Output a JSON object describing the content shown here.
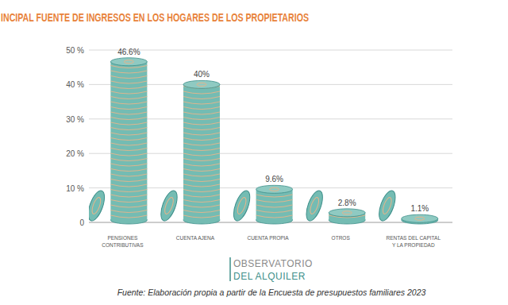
{
  "chart_data": {
    "type": "bar",
    "title": "INCIPAL FUENTE DE INGRESOS EN LOS HOGARES DE LOS PROPIETARIOS",
    "categories": [
      "PENSIONES CONTRIBUTIVAS",
      "CUENTA AJENA",
      "CUENTA PROPIA",
      "OTROS",
      "RENTAS DEL CAPITAL Y LA PROPIEDAD"
    ],
    "values": [
      46.6,
      40,
      9.6,
      2.8,
      1.1
    ],
    "value_labels": [
      "46.6%",
      "40%",
      "9.6%",
      "2.8%",
      "1.1%"
    ],
    "color": "#74bcb3",
    "ylim": [
      0,
      50
    ],
    "yticks": [
      0,
      {
        "value": 10,
        "label": "10 %"
      },
      {
        "value": 20,
        "label": "20 %"
      },
      {
        "value": 30,
        "label": "30 %"
      },
      {
        "value": 40,
        "label": "40 %"
      },
      {
        "value": 50,
        "label": "50 %"
      }
    ],
    "grid": true,
    "data_labels": true,
    "logo": [
      "OBSERVATORIO",
      "DEL ALQUILER"
    ],
    "source": "Fuente: Elaboración propia a partir de la Encuesta de presupuestos familiares 2023"
  }
}
